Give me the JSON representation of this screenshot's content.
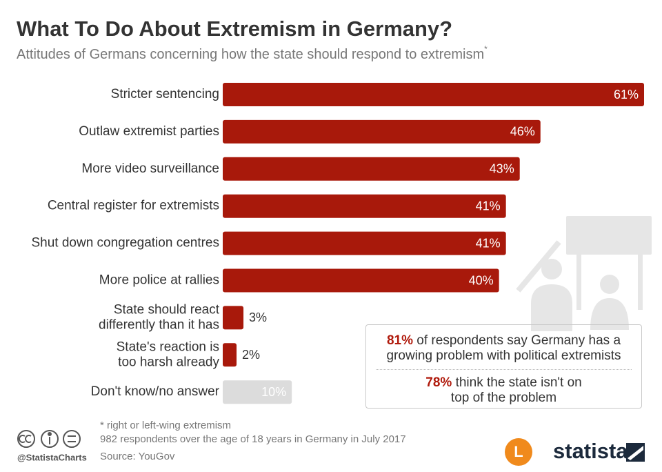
{
  "chart_data": {
    "type": "hbar",
    "title": "What To Do About Extremism in Germany?",
    "subtitle": "Attitudes of Germans concerning how the state should respond to extremism",
    "subtitle_mark": "*",
    "categories": [
      "Stricter sentencing",
      "Outlaw extremist parties",
      "More video surveillance",
      "Central register for extremists",
      "Shut down congregation centres",
      "More police at rallies",
      "State should react\ndifferently than it has",
      "State's reaction is\ntoo harsh already",
      "Don't know/no answer"
    ],
    "values": [
      61,
      46,
      43,
      41,
      41,
      40,
      3,
      2,
      10
    ],
    "value_labels": [
      "61%",
      "46%",
      "43%",
      "41%",
      "41%",
      "40%",
      "3%",
      "2%",
      "10%"
    ],
    "colors": [
      "#a8190b",
      "#a8190b",
      "#a8190b",
      "#a8190b",
      "#a8190b",
      "#a8190b",
      "#a8190b",
      "#a8190b",
      "#dcdcdc"
    ]
  },
  "infobox": {
    "items": [
      {
        "highlight": "81%",
        "text": "of respondents say Germany has a\ngrowing problem with political extremists"
      },
      {
        "highlight": "78%",
        "text": "think the state isn't on\ntop of the problem"
      }
    ]
  },
  "footer": {
    "note": "* right or left-wing extremism",
    "sample": "982 respondents over the age of 18 years in Germany in July 2017",
    "source": "Source: YouGov",
    "handle": "@StatistaCharts",
    "logo_letter": "L",
    "brand": "statista"
  }
}
